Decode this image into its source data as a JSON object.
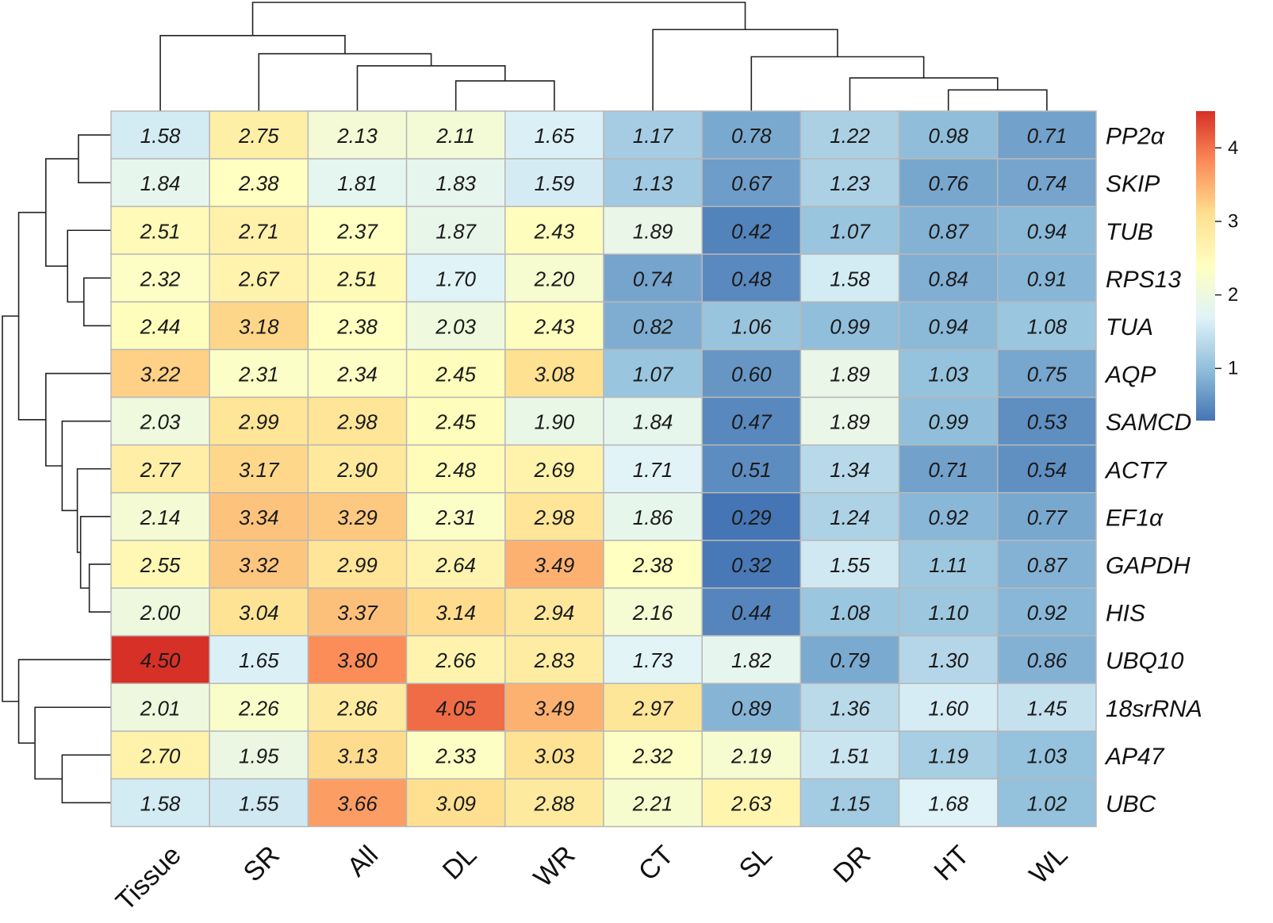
{
  "chart_data": {
    "type": "heatmap",
    "columns": [
      "Tissue",
      "SR",
      "All",
      "DL",
      "WR",
      "CT",
      "SL",
      "DR",
      "HT",
      "WL"
    ],
    "rows": [
      "PP2α",
      "SKIP",
      "TUB",
      "RPS13",
      "TUA",
      "AQP",
      "SAMCD",
      "ACT7",
      "EF1α",
      "GAPDH",
      "HIS",
      "UBQ10",
      "18srRNA",
      "AP47",
      "UBC"
    ],
    "values": [
      [
        1.58,
        2.75,
        2.13,
        2.11,
        1.65,
        1.17,
        0.78,
        1.22,
        0.98,
        0.71
      ],
      [
        1.84,
        2.38,
        1.81,
        1.83,
        1.59,
        1.13,
        0.67,
        1.23,
        0.76,
        0.74
      ],
      [
        2.51,
        2.71,
        2.37,
        1.87,
        2.43,
        1.89,
        0.42,
        1.07,
        0.87,
        0.94
      ],
      [
        2.32,
        2.67,
        2.51,
        1.7,
        2.2,
        0.74,
        0.48,
        1.58,
        0.84,
        0.91
      ],
      [
        2.44,
        3.18,
        2.38,
        2.03,
        2.43,
        0.82,
        1.06,
        0.99,
        0.94,
        1.08
      ],
      [
        3.22,
        2.31,
        2.34,
        2.45,
        3.08,
        1.07,
        0.6,
        1.89,
        1.03,
        0.75
      ],
      [
        2.03,
        2.99,
        2.98,
        2.45,
        1.9,
        1.84,
        0.47,
        1.89,
        0.99,
        0.53
      ],
      [
        2.77,
        3.17,
        2.9,
        2.48,
        2.69,
        1.71,
        0.51,
        1.34,
        0.71,
        0.54
      ],
      [
        2.14,
        3.34,
        3.29,
        2.31,
        2.98,
        1.86,
        0.29,
        1.24,
        0.92,
        0.77
      ],
      [
        2.55,
        3.32,
        2.99,
        2.64,
        3.49,
        2.38,
        0.32,
        1.55,
        1.11,
        0.87
      ],
      [
        2.0,
        3.04,
        3.37,
        3.14,
        2.94,
        2.16,
        0.44,
        1.08,
        1.1,
        0.92
      ],
      [
        4.5,
        1.65,
        3.8,
        2.66,
        2.83,
        1.73,
        1.82,
        0.79,
        1.3,
        0.86
      ],
      [
        2.01,
        2.26,
        2.86,
        4.05,
        3.49,
        2.97,
        0.89,
        1.36,
        1.6,
        1.45
      ],
      [
        2.7,
        1.95,
        3.13,
        2.33,
        3.03,
        2.32,
        2.19,
        1.51,
        1.19,
        1.03
      ],
      [
        1.58,
        1.55,
        3.66,
        3.09,
        2.88,
        2.21,
        2.63,
        1.15,
        1.68,
        1.02
      ]
    ],
    "value_range": [
      0.29,
      4.5
    ],
    "legend": {
      "ticks": [
        1,
        2,
        3,
        4
      ],
      "tick_labels": [
        "1",
        "2",
        "3",
        "4"
      ],
      "colormap": [
        "#4575b4",
        "#91bfdb",
        "#e0f3f8",
        "#ffffbf",
        "#fee090",
        "#fc8d59",
        "#d73027"
      ]
    },
    "column_dendrogram": {
      "merges": [
        [
          8,
          9,
          0.35
        ],
        [
          7,
          -1,
          0.55
        ],
        [
          6,
          -2,
          0.9
        ],
        [
          5,
          -3,
          1.35
        ],
        [
          3,
          4,
          0.5
        ],
        [
          2,
          -5,
          0.75
        ],
        [
          1,
          -6,
          0.95
        ],
        [
          0,
          -7,
          1.25
        ],
        [
          -8,
          -4,
          1.8
        ]
      ]
    },
    "row_dendrogram": {
      "merges": [
        [
          0,
          1,
          0.3
        ],
        [
          3,
          4,
          0.25
        ],
        [
          2,
          -2,
          0.4
        ],
        [
          -1,
          -3,
          0.6
        ],
        [
          9,
          10,
          0.2
        ],
        [
          8,
          -5,
          0.28
        ],
        [
          7,
          -6,
          0.31
        ],
        [
          6,
          -7,
          0.45
        ],
        [
          5,
          -8,
          0.6
        ],
        [
          -4,
          -9,
          0.85
        ],
        [
          13,
          14,
          0.45
        ],
        [
          12,
          -11,
          0.7
        ],
        [
          11,
          -12,
          0.85
        ],
        [
          -10,
          -13,
          1.0
        ]
      ]
    }
  }
}
